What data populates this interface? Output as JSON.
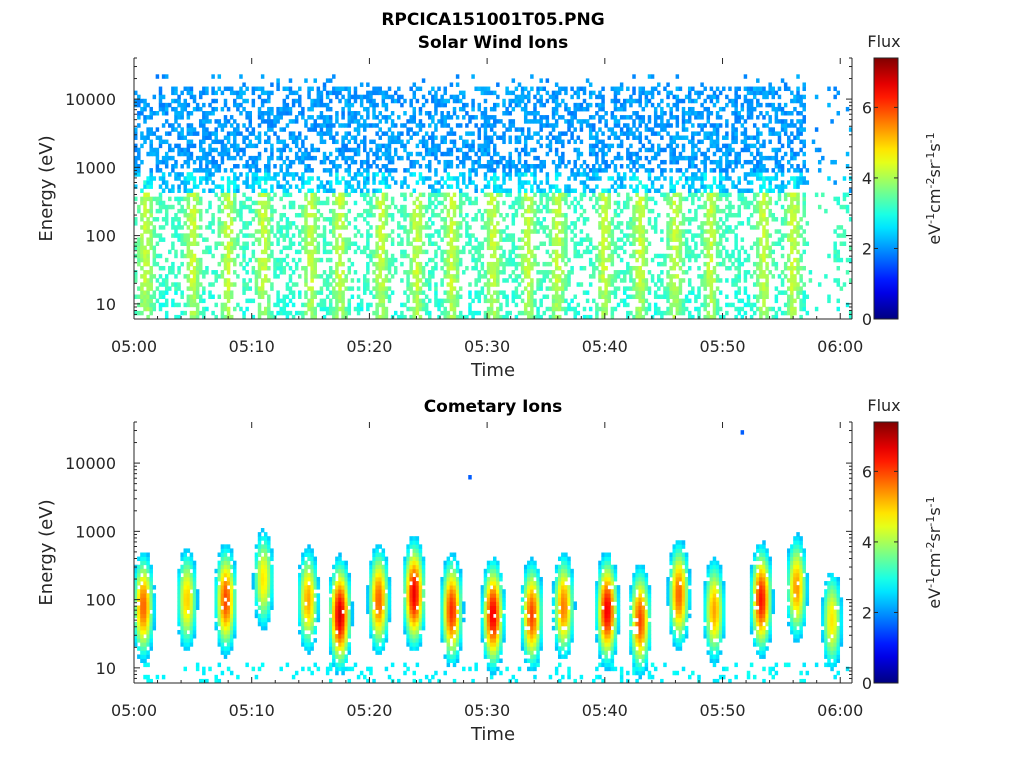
{
  "figure_title": "RPCICA151001T05.PNG",
  "chart_data": [
    {
      "type": "heatmap",
      "title": "Solar Wind Ions",
      "xlabel": "Time",
      "ylabel": "Energy (eV)",
      "x_ticks": [
        "05:00",
        "05:10",
        "05:20",
        "05:30",
        "05:40",
        "05:50",
        "06:00"
      ],
      "y_ticks": [
        "10",
        "100",
        "1000",
        "10000"
      ],
      "y_scale": "log",
      "ylim": [
        6,
        40000
      ],
      "xlim_minutes": [
        0,
        61
      ],
      "colorbar": {
        "title": "Flux",
        "label": "eV-1cm-2sr-1s-1",
        "ticks": [
          "0",
          "2",
          "4",
          "6"
        ],
        "range": [
          0,
          7.4
        ],
        "colormap": "jet"
      },
      "description_of_structure": {
        "high_energy_band_eV": [
          800,
          15000
        ],
        "high_energy_flux_level": 1.8,
        "low_energy_band_eV": [
          6,
          400
        ],
        "low_energy_flux_level": 3.0,
        "data_end_minute": 57,
        "sparse_after_minute": 57,
        "bursts_minutes": [
          1,
          5,
          8,
          11,
          15,
          17.5,
          21,
          24,
          27,
          30.5,
          33.5,
          36,
          40,
          43,
          46,
          49,
          53.5,
          56
        ]
      }
    },
    {
      "type": "heatmap",
      "title": "Cometary Ions",
      "xlabel": "Time",
      "ylabel": "Energy (eV)",
      "x_ticks": [
        "05:00",
        "05:10",
        "05:20",
        "05:30",
        "05:40",
        "05:50",
        "06:00"
      ],
      "y_ticks": [
        "10",
        "100",
        "1000",
        "10000"
      ],
      "y_scale": "log",
      "ylim": [
        6,
        40000
      ],
      "xlim_minutes": [
        0,
        61
      ],
      "colorbar": {
        "title": "Flux",
        "label": "eV-1cm-2sr-1s-1",
        "ticks": [
          "0",
          "2",
          "4",
          "6"
        ],
        "range": [
          0,
          7.4
        ],
        "colormap": "jet"
      },
      "description_of_structure": {
        "bursts": [
          {
            "minute": 0.8,
            "peak": 5.0,
            "peak_eV": 80
          },
          {
            "minute": 4.5,
            "peak": 4.2,
            "peak_eV": 100
          },
          {
            "minute": 7.8,
            "peak": 5.2,
            "peak_eV": 100
          },
          {
            "minute": 11.0,
            "peak": 4.0,
            "peak_eV": 200
          },
          {
            "minute": 14.8,
            "peak": 4.5,
            "peak_eV": 100
          },
          {
            "minute": 17.5,
            "peak": 6.0,
            "peak_eV": 60
          },
          {
            "minute": 20.8,
            "peak": 5.0,
            "peak_eV": 100
          },
          {
            "minute": 23.8,
            "peak": 5.8,
            "peak_eV": 120
          },
          {
            "minute": 27.0,
            "peak": 5.4,
            "peak_eV": 70
          },
          {
            "minute": 30.5,
            "peak": 5.8,
            "peak_eV": 60
          },
          {
            "minute": 33.8,
            "peak": 5.2,
            "peak_eV": 60
          },
          {
            "minute": 36.5,
            "peak": 4.8,
            "peak_eV": 80
          },
          {
            "minute": 40.2,
            "peak": 5.8,
            "peak_eV": 70
          },
          {
            "minute": 43.0,
            "peak": 5.2,
            "peak_eV": 50
          },
          {
            "minute": 46.3,
            "peak": 5.0,
            "peak_eV": 120
          },
          {
            "minute": 49.3,
            "peak": 4.5,
            "peak_eV": 70
          },
          {
            "minute": 53.3,
            "peak": 5.6,
            "peak_eV": 100
          },
          {
            "minute": 56.3,
            "peak": 4.6,
            "peak_eV": 150
          },
          {
            "minute": 59.3,
            "peak": 4.0,
            "peak_eV": 50
          }
        ]
      }
    }
  ]
}
